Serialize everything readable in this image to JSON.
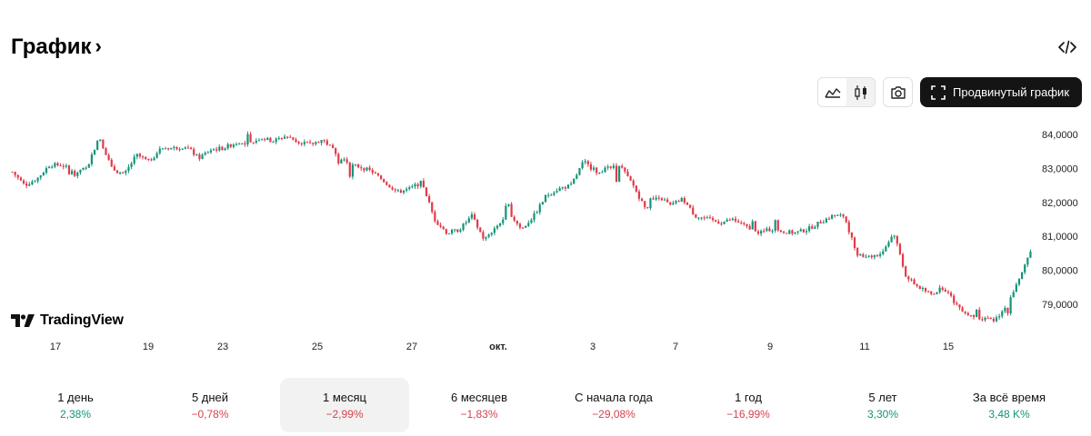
{
  "header": {
    "title": "График"
  },
  "toolbar": {
    "advanced_label": "Продвинутый график"
  },
  "brand": {
    "logo_text": "TradingView"
  },
  "colors": {
    "up": "#14937a",
    "down": "#e03a48"
  },
  "icons": [
    "chevron-right-icon",
    "code-embed-icon",
    "area-chart-icon",
    "candles-icon",
    "camera-icon",
    "fullscreen-icon",
    "tradingview-logo-icon"
  ],
  "periods": [
    {
      "label": "1 день",
      "value": "2,38%",
      "trend": "pos"
    },
    {
      "label": "5 дней",
      "value": "−0,78%",
      "trend": "neg"
    },
    {
      "label": "1 месяц",
      "value": "−2,99%",
      "trend": "neg",
      "selected": true
    },
    {
      "label": "6 месяцев",
      "value": "−1,83%",
      "trend": "neg"
    },
    {
      "label": "С начала года",
      "value": "−29,08%",
      "trend": "neg"
    },
    {
      "label": "1 год",
      "value": "−16,99%",
      "trend": "neg"
    },
    {
      "label": "5 лет",
      "value": "3,30%",
      "trend": "pos"
    },
    {
      "label": "За всё время",
      "value": "3,48 K%",
      "trend": "pos"
    }
  ],
  "chart_data": {
    "type": "candlestick",
    "x_ticks": [
      "17",
      "19",
      "23",
      "25",
      "27",
      "окт.",
      "3",
      "7",
      "9",
      "11",
      "15"
    ],
    "y_ticks": [
      "84,0000",
      "83,0000",
      "82,0000",
      "81,0000",
      "80,0000",
      "79,0000"
    ],
    "ylim": [
      78.5,
      84.3
    ],
    "close_path": [
      [
        0,
        82.9
      ],
      [
        1,
        82.5
      ],
      [
        2,
        82.7
      ],
      [
        3,
        83.1
      ],
      [
        4,
        83.1
      ],
      [
        5,
        82.9
      ],
      [
        6,
        83.0
      ],
      [
        7,
        83.95
      ],
      [
        8,
        83.0
      ],
      [
        9,
        82.8
      ],
      [
        10,
        83.4
      ],
      [
        11,
        83.2
      ],
      [
        12,
        83.6
      ],
      [
        13,
        83.6
      ],
      [
        14,
        83.65
      ],
      [
        15,
        83.3
      ],
      [
        16,
        83.55
      ],
      [
        17,
        83.6
      ],
      [
        18,
        83.75
      ],
      [
        19,
        83.7
      ],
      [
        20,
        83.9
      ],
      [
        21,
        83.8
      ],
      [
        22,
        83.95
      ],
      [
        23,
        83.8
      ],
      [
        24,
        83.7
      ],
      [
        25,
        83.85
      ],
      [
        26,
        83.5
      ],
      [
        27,
        83.1
      ],
      [
        28,
        83.05
      ],
      [
        29,
        82.9
      ],
      [
        30,
        82.6
      ],
      [
        31,
        82.3
      ],
      [
        32,
        82.4
      ],
      [
        33,
        82.6
      ],
      [
        34,
        81.5
      ],
      [
        35,
        81.1
      ],
      [
        36,
        81.2
      ],
      [
        37,
        81.6
      ],
      [
        38,
        80.9
      ],
      [
        39,
        81.3
      ],
      [
        40,
        81.7
      ],
      [
        41,
        81.2
      ],
      [
        42,
        81.6
      ],
      [
        43,
        82.2
      ],
      [
        44,
        82.4
      ],
      [
        45,
        82.5
      ],
      [
        46,
        83.2
      ],
      [
        47,
        82.9
      ],
      [
        48,
        83.0
      ],
      [
        49,
        83.05
      ],
      [
        50,
        82.5
      ],
      [
        51,
        81.8
      ],
      [
        52,
        82.2
      ],
      [
        53,
        81.9
      ],
      [
        54,
        82.1
      ],
      [
        55,
        81.6
      ],
      [
        56,
        81.5
      ],
      [
        57,
        81.4
      ],
      [
        58,
        81.5
      ],
      [
        59,
        81.3
      ],
      [
        60,
        81.1
      ],
      [
        61,
        81.2
      ],
      [
        62,
        81.15
      ],
      [
        63,
        81.1
      ],
      [
        64,
        81.2
      ],
      [
        65,
        81.4
      ],
      [
        66,
        81.6
      ],
      [
        67,
        81.6
      ],
      [
        68,
        80.5
      ],
      [
        69,
        80.4
      ],
      [
        70,
        80.5
      ],
      [
        71,
        81.1
      ],
      [
        72,
        79.8
      ],
      [
        73,
        79.5
      ],
      [
        74,
        79.3
      ],
      [
        75,
        79.5
      ],
      [
        76,
        79.0
      ],
      [
        77,
        78.7
      ],
      [
        78,
        78.6
      ],
      [
        79,
        78.5
      ],
      [
        80,
        78.9
      ],
      [
        81,
        79.7
      ],
      [
        82,
        80.5
      ]
    ]
  }
}
